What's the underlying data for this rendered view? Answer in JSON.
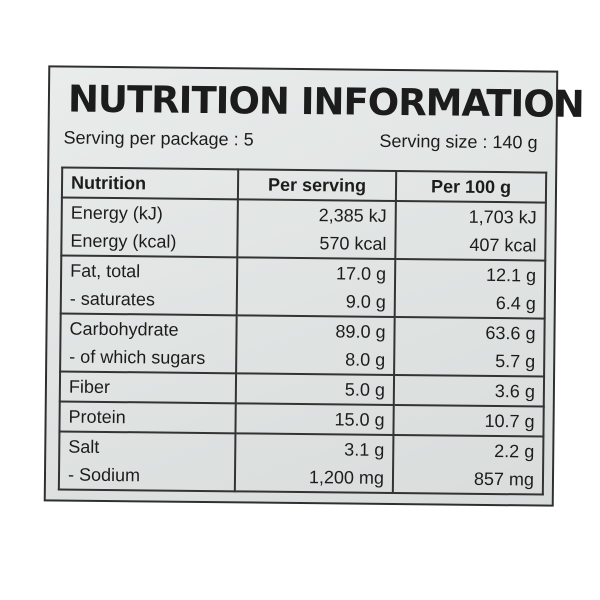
{
  "title": "NUTRITION INFORMATION",
  "serving_per_package": "Serving per package : 5",
  "serving_size": "Serving size : 140 g",
  "headers": {
    "nutrition": "Nutrition",
    "per_serving": "Per serving",
    "per_100g": "Per 100 g"
  },
  "groups": [
    {
      "lines": [
        {
          "name": "Energy (kJ)",
          "per_serving": "2,385 kJ",
          "per_100g": "1,703 kJ"
        },
        {
          "name": "Energy (kcal)",
          "per_serving": "570 kcal",
          "per_100g": "407 kcal"
        }
      ]
    },
    {
      "lines": [
        {
          "name": "Fat, total",
          "per_serving": "17.0 g",
          "per_100g": "12.1 g"
        },
        {
          "name": " - saturates",
          "per_serving": "9.0 g",
          "per_100g": "6.4 g"
        }
      ]
    },
    {
      "lines": [
        {
          "name": "Carbohydrate",
          "per_serving": "89.0 g",
          "per_100g": "63.6 g"
        },
        {
          "name": " - of which sugars",
          "per_serving": "8.0 g",
          "per_100g": "5.7 g"
        }
      ]
    },
    {
      "lines": [
        {
          "name": "Fiber",
          "per_serving": "5.0 g",
          "per_100g": "3.6 g"
        }
      ]
    },
    {
      "lines": [
        {
          "name": "Protein",
          "per_serving": "15.0 g",
          "per_100g": "10.7 g"
        }
      ]
    },
    {
      "lines": [
        {
          "name": "Salt",
          "per_serving": "3.1 g",
          "per_100g": "2.2 g"
        },
        {
          "name": " - Sodium",
          "per_serving": "1,200 mg",
          "per_100g": "857 mg"
        }
      ]
    }
  ]
}
